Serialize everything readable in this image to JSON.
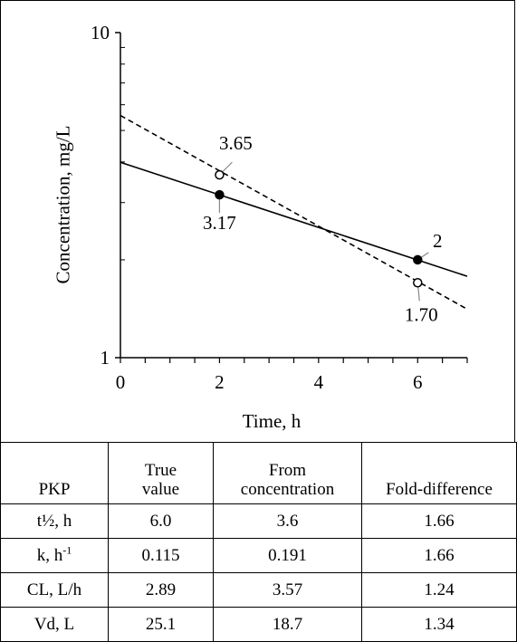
{
  "chart_data": {
    "type": "scatter",
    "xlabel": "Time,  h",
    "ylabel": "Concentration,  mg/L",
    "xlim": [
      0,
      7
    ],
    "ylim": [
      1,
      10
    ],
    "yscale": "log",
    "x_ticks": [
      0,
      2,
      4,
      6
    ],
    "y_ticks": [
      1,
      10
    ],
    "grid": false,
    "series": [
      {
        "style": "solid line, filled markers",
        "color": "#000000",
        "points": [
          {
            "x": 2,
            "y": 3.17,
            "label": "3.17"
          },
          {
            "x": 6,
            "y": 2,
            "label": "2"
          }
        ],
        "line": [
          {
            "x": 0,
            "y": 3.99
          },
          {
            "x": 7,
            "y": 1.78
          }
        ]
      },
      {
        "style": "dashed line, open markers",
        "color": "#000000",
        "points": [
          {
            "x": 2,
            "y": 3.65,
            "label": "3.65"
          },
          {
            "x": 6,
            "y": 1.7,
            "label": "1.70"
          }
        ],
        "line": [
          {
            "x": 0,
            "y": 5.56
          },
          {
            "x": 7,
            "y": 1.41
          }
        ]
      }
    ]
  },
  "table": {
    "headers": [
      {
        "line1": "",
        "line2": "PKP"
      },
      {
        "line1": "True",
        "line2": "value"
      },
      {
        "line1": "From",
        "line2": "concentration"
      },
      {
        "line1": "",
        "line2": "Fold-difference"
      }
    ],
    "rows": [
      {
        "pkp": "t½, h",
        "sup": "",
        "true_value": "6.0",
        "from_conc": "3.6",
        "fold": "1.66"
      },
      {
        "pkp": "k, h",
        "sup": "-1",
        "true_value": "0.115",
        "from_conc": "0.191",
        "fold": "1.66"
      },
      {
        "pkp": "CL, L/h",
        "sup": "",
        "true_value": "2.89",
        "from_conc": "3.57",
        "fold": "1.24"
      },
      {
        "pkp": "Vd, L",
        "sup": "",
        "true_value": "25.1",
        "from_conc": "18.7",
        "fold": "1.34"
      }
    ]
  }
}
